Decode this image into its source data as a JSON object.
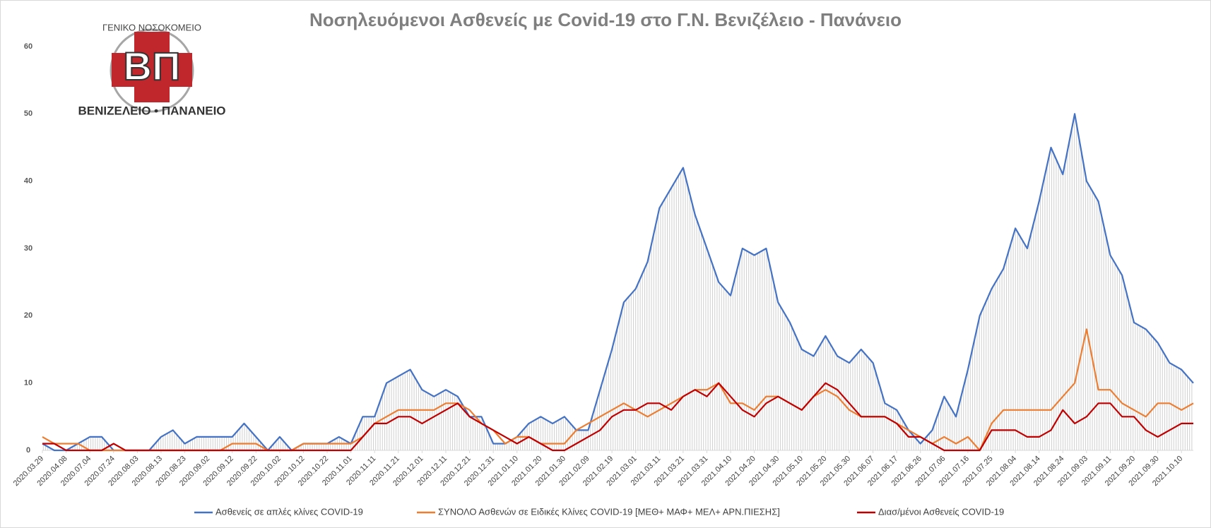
{
  "chart_data": {
    "type": "line",
    "title": "Νοσηλευόμενοι Ασθενείς με Covid-19 στο Γ.Ν. Βενιζέλειο - Πανάνειο",
    "logo": {
      "top": "ΓΕΝΙΚΟ ΝΟΣΟΚΟΜΕΙΟ",
      "letters": "ΒΠ",
      "bottom": "ΒΕΝΙΖΕΛΕΙΟ • ΠΑΝΑΝΕΙΟ"
    },
    "categories": [
      "2020.03.29",
      null,
      "2020.04.08",
      null,
      "2020.07.04",
      null,
      "2020.07.24",
      null,
      "2020.08.03",
      null,
      "2020.08.13",
      null,
      "2020.08.23",
      null,
      "2020.09.02",
      null,
      "2020.09.12",
      null,
      "2020.09.22",
      null,
      "2020.10.02",
      null,
      "2020.10.12",
      null,
      "2020.10.22",
      null,
      "2020.11.01",
      null,
      "2020.11.11",
      null,
      "2020.11.21",
      null,
      "2020.12.01",
      null,
      "2020.12.11",
      null,
      "2020.12.21",
      null,
      "2020.12.31",
      null,
      "2021.01.10",
      null,
      "2021.01.20",
      null,
      "2021.01.30",
      null,
      "2021.02.09",
      null,
      "2021.02.19",
      null,
      "2021.03.01",
      null,
      "2021.03.11",
      null,
      "2021.03.21",
      null,
      "2021.03.31",
      null,
      "2021.04.10",
      null,
      "2021.04.20",
      null,
      "2021.04.30",
      null,
      "2021.05.10",
      null,
      "2021.05.20",
      null,
      "2021.05.30",
      null,
      "2021.06.07",
      null,
      "2021.06.17",
      null,
      "2021.06.26",
      null,
      "2021.07.06",
      null,
      "2021.07.16",
      null,
      "2021.07.25",
      null,
      "2021.08.04",
      null,
      "2021.08.14",
      null,
      "2021.08.24",
      null,
      "2021.09.03",
      null,
      "2021.09.11",
      null,
      "2021.09.20",
      null,
      "2021.09.30",
      null,
      "2021.10.10",
      null
    ],
    "series": [
      {
        "name": "Ασθενείς σε απλές κλίνες COVID-19",
        "color": "#4472c4",
        "area": "#d0d0d0",
        "values": [
          1,
          0,
          0,
          1,
          2,
          2,
          0,
          0,
          0,
          0,
          2,
          3,
          1,
          2,
          2,
          2,
          2,
          4,
          2,
          0,
          2,
          0,
          1,
          1,
          1,
          2,
          1,
          5,
          5,
          10,
          11,
          12,
          9,
          8,
          9,
          8,
          5,
          5,
          1,
          1,
          2,
          4,
          5,
          4,
          5,
          3,
          3,
          9,
          15,
          22,
          24,
          28,
          36,
          39,
          42,
          35,
          30,
          25,
          23,
          30,
          29,
          30,
          22,
          19,
          15,
          14,
          17,
          14,
          13,
          15,
          13,
          7,
          6,
          3,
          1,
          3,
          8,
          5,
          12,
          20,
          24,
          27,
          33,
          30,
          37,
          45,
          41,
          50,
          40,
          37,
          29,
          26,
          19,
          18,
          16,
          13,
          12,
          10
        ]
      },
      {
        "name": "ΣΥΝΟΛΟ Ασθενών σε Ειδικές Κλίνες COVID-19 [ΜΕΘ+ ΜΑΦ+ ΜΕΛ+ ΑΡΝ.ΠΙΕΣΗΣ]",
        "color": "#ed7d31",
        "values": [
          2,
          1,
          1,
          1,
          0,
          0,
          0,
          0,
          0,
          0,
          0,
          0,
          0,
          0,
          0,
          0,
          1,
          1,
          1,
          0,
          0,
          0,
          1,
          1,
          1,
          1,
          1,
          2,
          4,
          5,
          6,
          6,
          6,
          6,
          7,
          7,
          6,
          4,
          3,
          1,
          2,
          2,
          1,
          1,
          1,
          3,
          4,
          5,
          6,
          7,
          6,
          5,
          6,
          7,
          8,
          9,
          9,
          10,
          7,
          7,
          6,
          8,
          8,
          7,
          6,
          8,
          9,
          8,
          6,
          5,
          5,
          5,
          4,
          3,
          2,
          1,
          2,
          1,
          2,
          0,
          4,
          6,
          6,
          6,
          6,
          6,
          8,
          10,
          18,
          9,
          9,
          7,
          6,
          5,
          7,
          7,
          6,
          7
        ]
      },
      {
        "name": "Διασ/μένοι Ασθενείς COVID-19",
        "color": "#c00000",
        "values": [
          1,
          1,
          0,
          0,
          0,
          0,
          1,
          0,
          0,
          0,
          0,
          0,
          0,
          0,
          0,
          0,
          0,
          0,
          0,
          0,
          0,
          0,
          0,
          0,
          0,
          0,
          0,
          2,
          4,
          4,
          5,
          5,
          4,
          5,
          6,
          7,
          5,
          4,
          3,
          2,
          1,
          2,
          1,
          0,
          0,
          1,
          2,
          3,
          5,
          6,
          6,
          7,
          7,
          6,
          8,
          9,
          8,
          10,
          8,
          6,
          5,
          7,
          8,
          7,
          6,
          8,
          10,
          9,
          7,
          5,
          5,
          5,
          4,
          2,
          2,
          1,
          0,
          0,
          0,
          0,
          3,
          3,
          3,
          2,
          2,
          3,
          6,
          4,
          5,
          7,
          7,
          5,
          5,
          3,
          2,
          3,
          4,
          4
        ]
      }
    ],
    "ylim": [
      0,
      60
    ],
    "yticks": [
      0,
      10,
      20,
      30,
      40,
      50,
      60
    ],
    "grid": false
  }
}
